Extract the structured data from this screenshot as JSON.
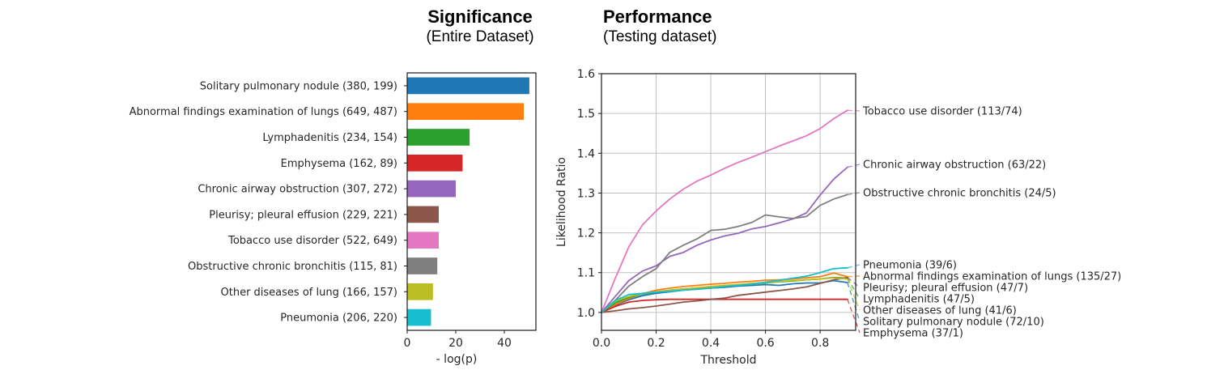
{
  "panels": {
    "significance": {
      "title": "Significance",
      "subtitle": "(Entire Dataset)"
    },
    "performance": {
      "title": "Performance",
      "subtitle": "(Testing dataset)"
    }
  },
  "colors": {
    "blue": "#1f77b4",
    "orange": "#ff7f0e",
    "green": "#2ca02c",
    "red": "#d62728",
    "purple": "#9467bd",
    "brown": "#8c564b",
    "pink": "#e377c2",
    "gray": "#7f7f7f",
    "olive": "#bcbd22",
    "cyan": "#17becf",
    "grid": "#c0c0c0",
    "axis": "#1a1a1a"
  },
  "chart_data": [
    {
      "id": "significance-bar",
      "type": "bar",
      "orientation": "horizontal",
      "title": "Significance (Entire Dataset)",
      "xlabel": "- log(p)",
      "ylabel": "",
      "xlim": [
        0,
        53
      ],
      "xticks": [
        0,
        20,
        40
      ],
      "grid": false,
      "categories": [
        "Solitary pulmonary nodule (380, 199)",
        "Abnormal findings examination of lungs (649, 487)",
        "Lymphadenitis (234, 154)",
        "Emphysema (162, 89)",
        "Chronic airway obstruction (307, 272)",
        "Pleurisy; pleural effusion (229, 221)",
        "Tobacco use disorder (522, 649)",
        "Obstructive chronic bronchitis (115, 81)",
        "Other diseases of lung (166, 157)",
        "Pneumonia (206, 220)"
      ],
      "values": [
        50.3,
        48.0,
        25.7,
        22.8,
        20.0,
        13.0,
        13.0,
        12.4,
        10.6,
        9.8
      ],
      "colors": [
        "#1f77b4",
        "#ff7f0e",
        "#2ca02c",
        "#d62728",
        "#9467bd",
        "#8c564b",
        "#e377c2",
        "#7f7f7f",
        "#bcbd22",
        "#17becf"
      ]
    },
    {
      "id": "performance-line",
      "type": "line",
      "title": "Performance (Testing dataset)",
      "xlabel": "Threshold",
      "ylabel": "Likelihood Ratio",
      "xlim": [
        0.0,
        0.93
      ],
      "ylim": [
        0.955,
        1.6
      ],
      "xticks": [
        0.0,
        0.2,
        0.4,
        0.6,
        0.8
      ],
      "yticks": [
        1.0,
        1.1,
        1.2,
        1.3,
        1.4,
        1.5,
        1.6
      ],
      "grid": true,
      "legend_position": "right-annotations",
      "x": [
        0,
        0.05,
        0.1,
        0.15,
        0.2,
        0.25,
        0.3,
        0.35,
        0.4,
        0.45,
        0.5,
        0.55,
        0.6,
        0.65,
        0.7,
        0.75,
        0.8,
        0.85,
        0.9
      ],
      "series": [
        {
          "name": "Solitary pulmonary nodule",
          "label": "Solitary pulmonary nodule (72/10)",
          "color": "#1f77b4",
          "values": [
            1.0,
            1.018,
            1.032,
            1.042,
            1.048,
            1.052,
            1.056,
            1.06,
            1.061,
            1.063,
            1.066,
            1.068,
            1.07,
            1.068,
            1.072,
            1.074,
            1.074,
            1.08,
            1.075
          ]
        },
        {
          "name": "Abnormal findings examination of lungs",
          "label": "Abnormal findings examination of lungs (135/27)",
          "color": "#ff7f0e",
          "values": [
            1.0,
            1.02,
            1.035,
            1.047,
            1.056,
            1.061,
            1.065,
            1.068,
            1.071,
            1.073,
            1.076,
            1.078,
            1.081,
            1.082,
            1.084,
            1.087,
            1.09,
            1.099,
            1.09
          ]
        },
        {
          "name": "Lymphadenitis",
          "label": "Lymphadenitis (47/5)",
          "color": "#2ca02c",
          "values": [
            1.0,
            1.024,
            1.038,
            1.046,
            1.051,
            1.056,
            1.059,
            1.061,
            1.065,
            1.067,
            1.07,
            1.072,
            1.074,
            1.077,
            1.079,
            1.082,
            1.084,
            1.088,
            1.086
          ]
        },
        {
          "name": "Emphysema",
          "label": "Emphysema (37/1)",
          "color": "#d62728",
          "values": [
            1.0,
            1.015,
            1.026,
            1.03,
            1.032,
            1.033,
            1.033,
            1.033,
            1.033,
            1.033,
            1.033,
            1.033,
            1.033,
            1.033,
            1.033,
            1.033,
            1.033,
            1.033,
            1.033
          ]
        },
        {
          "name": "Chronic airway obstruction",
          "label": "Chronic airway obstruction (63/22)",
          "color": "#9467bd",
          "values": [
            1.0,
            1.04,
            1.08,
            1.104,
            1.117,
            1.141,
            1.151,
            1.169,
            1.182,
            1.192,
            1.199,
            1.21,
            1.216,
            1.225,
            1.235,
            1.25,
            1.295,
            1.335,
            1.365
          ]
        },
        {
          "name": "Pleurisy; pleural effusion",
          "label": "Pleurisy; pleural effusion (47/7)",
          "color": "#8c564b",
          "values": [
            1.0,
            1.004,
            1.009,
            1.012,
            1.016,
            1.021,
            1.026,
            1.029,
            1.033,
            1.036,
            1.043,
            1.047,
            1.051,
            1.055,
            1.059,
            1.064,
            1.073,
            1.082,
            1.088
          ]
        },
        {
          "name": "Tobacco use disorder",
          "label": "Tobacco use disorder (113/74)",
          "color": "#e377c2",
          "values": [
            1.0,
            1.085,
            1.165,
            1.22,
            1.255,
            1.285,
            1.31,
            1.33,
            1.345,
            1.362,
            1.377,
            1.39,
            1.404,
            1.418,
            1.431,
            1.444,
            1.462,
            1.487,
            1.508
          ]
        },
        {
          "name": "Obstructive chronic bronchitis",
          "label": "Obstructive chronic bronchitis (24/5)",
          "color": "#7f7f7f",
          "values": [
            1.0,
            1.03,
            1.066,
            1.09,
            1.11,
            1.151,
            1.169,
            1.185,
            1.206,
            1.209,
            1.216,
            1.226,
            1.245,
            1.24,
            1.236,
            1.241,
            1.269,
            1.285,
            1.296
          ]
        },
        {
          "name": "Other diseases of lung",
          "label": "Other diseases of lung (41/6)",
          "color": "#bcbd22",
          "values": [
            1.0,
            1.028,
            1.04,
            1.047,
            1.052,
            1.056,
            1.059,
            1.062,
            1.065,
            1.068,
            1.07,
            1.073,
            1.075,
            1.078,
            1.08,
            1.082,
            1.084,
            1.087,
            1.084
          ]
        },
        {
          "name": "Pneumonia",
          "label": "Pneumonia (39/6)",
          "color": "#17becf",
          "values": [
            1.0,
            1.03,
            1.045,
            1.048,
            1.051,
            1.053,
            1.056,
            1.058,
            1.061,
            1.065,
            1.068,
            1.071,
            1.076,
            1.081,
            1.086,
            1.091,
            1.1,
            1.11,
            1.112
          ]
        }
      ]
    }
  ]
}
